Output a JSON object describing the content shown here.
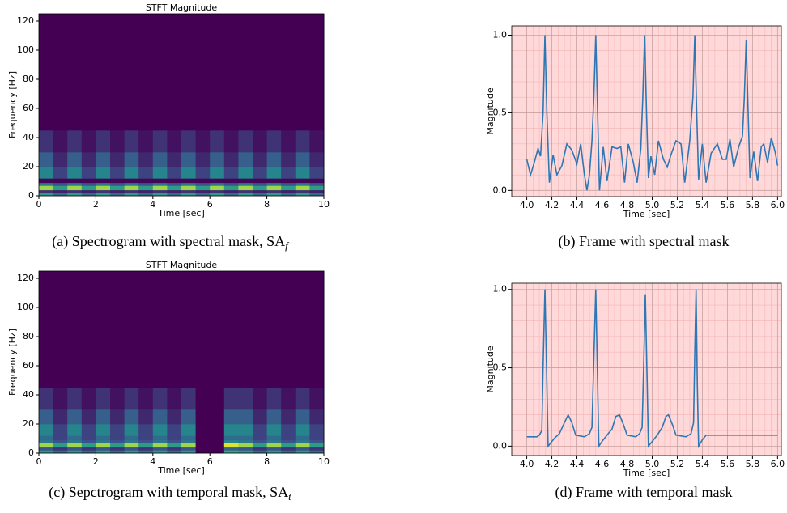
{
  "chart_data": [
    {
      "type": "heatmap",
      "title": "STFT Magnitude",
      "xlabel": "Time [sec]",
      "ylabel": "Frequency [Hz]",
      "caption": "(a) Spectrogram with spectral mask, SA",
      "caption_subscript": "f",
      "colormap": "viridis",
      "x_edges": [
        0,
        0.5,
        1,
        1.5,
        2,
        2.5,
        3,
        3.5,
        4,
        4.5,
        5,
        5.5,
        6,
        6.5,
        7,
        7.5,
        8,
        8.5,
        9,
        9.5,
        10
      ],
      "y_edges": [
        0,
        2,
        4,
        7,
        9,
        12,
        20,
        30,
        45,
        125
      ],
      "z": [
        [
          0.55,
          0.35,
          0.55,
          0.35,
          0.55,
          0.35,
          0.55,
          0.35,
          0.55,
          0.35,
          0.55,
          0.35,
          0.55,
          0.35,
          0.55,
          0.35,
          0.55,
          0.35,
          0.55,
          0.35
        ],
        [
          0.15,
          0.1,
          0.15,
          0.1,
          0.15,
          0.1,
          0.15,
          0.1,
          0.15,
          0.1,
          0.15,
          0.1,
          0.15,
          0.1,
          0.15,
          0.1,
          0.15,
          0.1,
          0.15,
          0.1
        ],
        [
          0.85,
          0.55,
          0.85,
          0.55,
          0.85,
          0.55,
          0.85,
          0.55,
          0.85,
          0.55,
          0.85,
          0.55,
          0.85,
          0.55,
          0.85,
          0.55,
          0.85,
          0.55,
          0.85,
          0.55
        ],
        [
          0.4,
          0.25,
          0.4,
          0.25,
          0.4,
          0.25,
          0.4,
          0.25,
          0.4,
          0.25,
          0.4,
          0.25,
          0.4,
          0.25,
          0.4,
          0.25,
          0.4,
          0.25,
          0.4,
          0.25
        ],
        [
          0.02,
          0.02,
          0.02,
          0.02,
          0.02,
          0.02,
          0.02,
          0.02,
          0.02,
          0.02,
          0.02,
          0.02,
          0.02,
          0.02,
          0.02,
          0.02,
          0.02,
          0.02,
          0.02,
          0.02
        ],
        [
          0.45,
          0.2,
          0.45,
          0.2,
          0.45,
          0.2,
          0.45,
          0.2,
          0.45,
          0.2,
          0.45,
          0.2,
          0.45,
          0.2,
          0.45,
          0.2,
          0.45,
          0.2,
          0.45,
          0.2
        ],
        [
          0.3,
          0.12,
          0.3,
          0.12,
          0.3,
          0.12,
          0.3,
          0.12,
          0.3,
          0.12,
          0.3,
          0.12,
          0.3,
          0.12,
          0.3,
          0.12,
          0.3,
          0.12,
          0.3,
          0.12
        ],
        [
          0.15,
          0.05,
          0.15,
          0.05,
          0.15,
          0.05,
          0.15,
          0.05,
          0.15,
          0.05,
          0.15,
          0.05,
          0.15,
          0.05,
          0.15,
          0.05,
          0.15,
          0.05,
          0.15,
          0.05
        ],
        [
          0,
          0,
          0,
          0,
          0,
          0,
          0,
          0,
          0,
          0,
          0,
          0,
          0,
          0,
          0,
          0,
          0,
          0,
          0,
          0
        ]
      ],
      "xlim": [
        0,
        10
      ],
      "xticks": [
        0,
        2,
        4,
        6,
        8,
        10
      ],
      "ylim": [
        0,
        125
      ],
      "yticks": [
        0,
        20,
        40,
        60,
        80,
        100,
        120
      ]
    },
    {
      "type": "line",
      "xlabel": "Time [sec]",
      "ylabel": "Magnitude",
      "caption": "(b) Frame with spectral mask",
      "color": "#2f77b4",
      "background": "#ffd9d9",
      "grid": true,
      "minor_grid": true,
      "x": [
        4.0,
        4.03,
        4.06,
        4.09,
        4.11,
        4.13,
        4.145,
        4.16,
        4.18,
        4.21,
        4.24,
        4.28,
        4.32,
        4.36,
        4.4,
        4.43,
        4.46,
        4.48,
        4.5,
        4.52,
        4.535,
        4.55,
        4.565,
        4.58,
        4.61,
        4.64,
        4.68,
        4.72,
        4.75,
        4.78,
        4.81,
        4.85,
        4.88,
        4.91,
        4.925,
        4.94,
        4.955,
        4.97,
        4.99,
        5.02,
        5.05,
        5.09,
        5.12,
        5.15,
        5.19,
        5.23,
        5.26,
        5.3,
        5.325,
        5.34,
        5.355,
        5.37,
        5.4,
        5.43,
        5.47,
        5.52,
        5.56,
        5.59,
        5.62,
        5.65,
        5.69,
        5.72,
        5.735,
        5.75,
        5.765,
        5.78,
        5.81,
        5.84,
        5.87,
        5.89,
        5.92,
        5.95,
        5.98,
        6.0
      ],
      "values": [
        0.2,
        0.1,
        0.18,
        0.27,
        0.22,
        0.5,
        1.0,
        0.5,
        0.05,
        0.23,
        0.1,
        0.16,
        0.3,
        0.26,
        0.17,
        0.3,
        0.1,
        0.0,
        0.1,
        0.32,
        0.6,
        1.0,
        0.5,
        0.0,
        0.28,
        0.06,
        0.28,
        0.27,
        0.28,
        0.05,
        0.3,
        0.18,
        0.05,
        0.27,
        0.6,
        1.0,
        0.5,
        0.08,
        0.22,
        0.1,
        0.32,
        0.2,
        0.15,
        0.23,
        0.32,
        0.3,
        0.05,
        0.32,
        0.6,
        1.0,
        0.5,
        0.07,
        0.3,
        0.05,
        0.24,
        0.3,
        0.2,
        0.2,
        0.33,
        0.15,
        0.28,
        0.35,
        0.6,
        0.97,
        0.5,
        0.08,
        0.25,
        0.06,
        0.28,
        0.3,
        0.18,
        0.34,
        0.25,
        0.16
      ],
      "xlim": [
        3.88,
        6.03
      ],
      "xticks": [
        {
          "value": 4,
          "label": "4.0"
        },
        {
          "value": 4.2,
          "label": "4.2"
        },
        {
          "value": 4.4,
          "label": "4.4"
        },
        {
          "value": 4.6,
          "label": "4.6"
        },
        {
          "value": 4.8,
          "label": "4.8"
        },
        {
          "value": 5,
          "label": "5.0"
        },
        {
          "value": 5.2,
          "label": "5.2"
        },
        {
          "value": 5.4,
          "label": "5.4"
        },
        {
          "value": 5.6,
          "label": "5.6"
        },
        {
          "value": 5.8,
          "label": "5.8"
        },
        {
          "value": 6,
          "label": "6.0"
        }
      ],
      "ylim": [
        -0.04,
        1.06
      ],
      "yticks": [
        {
          "value": 0,
          "label": "0.0"
        },
        0.5,
        {
          "value": 1,
          "label": "1.0"
        }
      ]
    },
    {
      "type": "heatmap",
      "title": "STFT Magnitude",
      "xlabel": "Time [sec]",
      "ylabel": "Frequency [Hz]",
      "caption": "(c) Sepctrogram with temporal mask, SA",
      "caption_subscript": "t",
      "colormap": "viridis",
      "x_edges": [
        0,
        0.5,
        1,
        1.5,
        2,
        2.5,
        3,
        3.5,
        4,
        4.5,
        5,
        5.5,
        6,
        6.5,
        7,
        7.5,
        8,
        8.5,
        9,
        9.5,
        10
      ],
      "y_edges": [
        0,
        2,
        4,
        7,
        9,
        12,
        20,
        30,
        45,
        125
      ],
      "z": [
        [
          0.55,
          0.35,
          0.55,
          0.35,
          0.55,
          0.35,
          0.55,
          0.35,
          0.55,
          0.35,
          0.55,
          0,
          0,
          0.6,
          0.55,
          0.35,
          0.55,
          0.35,
          0.55,
          0.35
        ],
        [
          0.25,
          0.15,
          0.25,
          0.15,
          0.25,
          0.15,
          0.25,
          0.15,
          0.25,
          0.15,
          0.25,
          0,
          0,
          0.3,
          0.25,
          0.15,
          0.25,
          0.15,
          0.25,
          0.15
        ],
        [
          0.85,
          0.55,
          0.85,
          0.55,
          0.85,
          0.55,
          0.85,
          0.55,
          0.85,
          0.55,
          0.85,
          0,
          0,
          0.95,
          0.85,
          0.55,
          0.85,
          0.55,
          0.85,
          0.55
        ],
        [
          0.4,
          0.25,
          0.4,
          0.25,
          0.4,
          0.25,
          0.4,
          0.25,
          0.4,
          0.25,
          0.4,
          0,
          0,
          0.45,
          0.4,
          0.25,
          0.4,
          0.25,
          0.4,
          0.25
        ],
        [
          0.35,
          0.2,
          0.35,
          0.2,
          0.35,
          0.2,
          0.35,
          0.2,
          0.35,
          0.2,
          0.35,
          0,
          0,
          0.35,
          0.35,
          0.2,
          0.35,
          0.2,
          0.35,
          0.2
        ],
        [
          0.45,
          0.2,
          0.45,
          0.2,
          0.45,
          0.2,
          0.45,
          0.2,
          0.45,
          0.2,
          0.45,
          0,
          0,
          0.45,
          0.45,
          0.2,
          0.45,
          0.2,
          0.45,
          0.2
        ],
        [
          0.3,
          0.12,
          0.3,
          0.12,
          0.3,
          0.12,
          0.3,
          0.12,
          0.3,
          0.12,
          0.3,
          0,
          0,
          0.3,
          0.3,
          0.12,
          0.3,
          0.12,
          0.3,
          0.12
        ],
        [
          0.15,
          0.05,
          0.15,
          0.05,
          0.15,
          0.05,
          0.15,
          0.05,
          0.15,
          0.05,
          0.15,
          0,
          0,
          0.15,
          0.15,
          0.05,
          0.15,
          0.05,
          0.15,
          0.05
        ],
        [
          0,
          0,
          0,
          0,
          0,
          0,
          0,
          0,
          0,
          0,
          0,
          0,
          0,
          0,
          0,
          0,
          0,
          0,
          0,
          0
        ]
      ],
      "xlim": [
        0,
        10
      ],
      "xticks": [
        0,
        2,
        4,
        6,
        8,
        10
      ],
      "ylim": [
        0,
        125
      ],
      "yticks": [
        0,
        20,
        40,
        60,
        80,
        100,
        120
      ]
    },
    {
      "type": "line",
      "xlabel": "Time [sec]",
      "ylabel": "Magnitude",
      "caption": "(d) Frame with temporal mask",
      "color": "#2f77b4",
      "background": "#ffd9d9",
      "grid": true,
      "minor_grid": true,
      "x": [
        4.0,
        4.08,
        4.1,
        4.12,
        4.13,
        4.145,
        4.16,
        4.17,
        4.19,
        4.22,
        4.26,
        4.3,
        4.33,
        4.36,
        4.39,
        4.46,
        4.5,
        4.52,
        4.535,
        4.55,
        4.565,
        4.575,
        4.6,
        4.64,
        4.68,
        4.71,
        4.74,
        4.77,
        4.8,
        4.87,
        4.9,
        4.92,
        4.935,
        4.945,
        4.96,
        4.97,
        5.0,
        5.04,
        5.08,
        5.11,
        5.13,
        5.16,
        5.19,
        5.27,
        5.31,
        5.33,
        5.34,
        5.35,
        5.36,
        5.37,
        5.4,
        5.43,
        5.5,
        6.0
      ],
      "values": [
        0.06,
        0.06,
        0.07,
        0.1,
        0.5,
        1.0,
        0.4,
        0.0,
        0.02,
        0.05,
        0.08,
        0.15,
        0.2,
        0.15,
        0.07,
        0.06,
        0.08,
        0.12,
        0.55,
        1.0,
        0.4,
        0.0,
        0.03,
        0.07,
        0.11,
        0.19,
        0.2,
        0.14,
        0.07,
        0.06,
        0.08,
        0.12,
        0.6,
        0.97,
        0.4,
        0.0,
        0.03,
        0.07,
        0.12,
        0.19,
        0.2,
        0.14,
        0.07,
        0.06,
        0.08,
        0.15,
        0.6,
        1.0,
        0.4,
        0.0,
        0.04,
        0.07,
        0.07,
        0.07
      ],
      "xlim": [
        3.88,
        6.03
      ],
      "xticks": [
        {
          "value": 4,
          "label": "4.0"
        },
        {
          "value": 4.2,
          "label": "4.2"
        },
        {
          "value": 4.4,
          "label": "4.4"
        },
        {
          "value": 4.6,
          "label": "4.6"
        },
        {
          "value": 4.8,
          "label": "4.8"
        },
        {
          "value": 5,
          "label": "5.0"
        },
        {
          "value": 5.2,
          "label": "5.2"
        },
        {
          "value": 5.4,
          "label": "5.4"
        },
        {
          "value": 5.6,
          "label": "5.6"
        },
        {
          "value": 5.8,
          "label": "5.8"
        },
        {
          "value": 6,
          "label": "6.0"
        }
      ],
      "ylim": [
        -0.06,
        1.04
      ],
      "yticks": [
        {
          "value": 0,
          "label": "0.0"
        },
        0.5,
        {
          "value": 1,
          "label": "1.0"
        }
      ]
    }
  ]
}
